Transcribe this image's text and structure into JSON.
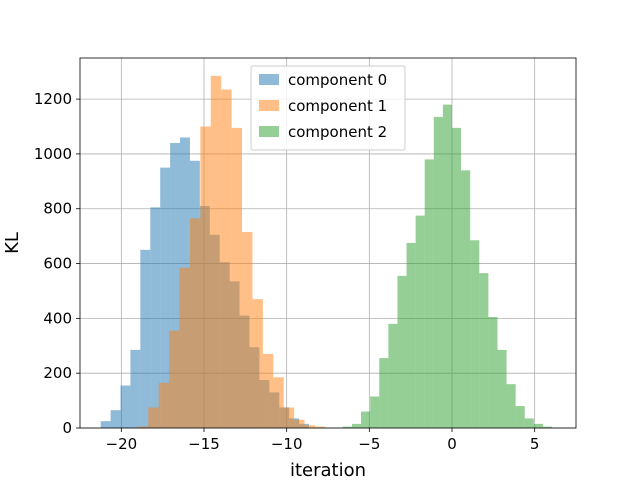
{
  "chart_data": {
    "type": "histogram",
    "title": "",
    "xlabel": "iteration",
    "ylabel": "KL",
    "xlim": [
      -22.5,
      7.5
    ],
    "ylim": [
      0,
      1350
    ],
    "xticks": [
      -20,
      -15,
      -10,
      -5,
      0,
      5
    ],
    "xtick_labels": [
      "−20",
      "−15",
      "−10",
      "−5",
      "0",
      "5"
    ],
    "yticks": [
      0,
      200,
      400,
      600,
      800,
      1000,
      1200
    ],
    "ytick_labels": [
      "0",
      "200",
      "400",
      "600",
      "800",
      "1000",
      "1200"
    ],
    "grid": true,
    "legend_position": "upper center",
    "alpha": 0.5,
    "series": [
      {
        "name": "component 0",
        "color": "#1f77b4",
        "bin_start": -21.25,
        "bin_width": 0.6,
        "values": [
          25,
          65,
          155,
          285,
          650,
          805,
          950,
          1040,
          1060,
          975,
          810,
          705,
          605,
          535,
          410,
          295,
          175,
          130,
          75,
          35,
          15
        ]
      },
      {
        "name": "component 1",
        "color": "#ff7f0e",
        "bin_start": -19.0,
        "bin_width": 0.63,
        "values": [
          5,
          75,
          165,
          355,
          585,
          765,
          1100,
          1285,
          1235,
          1095,
          715,
          470,
          270,
          185,
          75,
          30,
          10,
          5
        ]
      },
      {
        "name": "component 2",
        "color": "#2ca02c",
        "bin_start": -6.6,
        "bin_width": 0.55,
        "values": [
          5,
          15,
          60,
          115,
          255,
          380,
          555,
          675,
          775,
          980,
          1135,
          1180,
          1095,
          940,
          685,
          565,
          405,
          285,
          160,
          80,
          35,
          15,
          5
        ]
      }
    ]
  }
}
